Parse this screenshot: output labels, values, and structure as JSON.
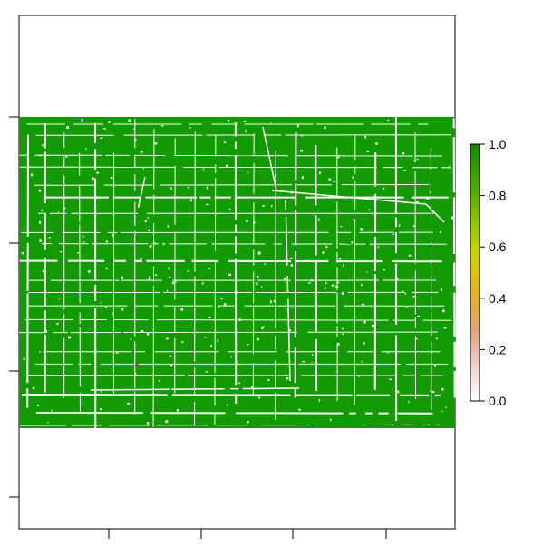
{
  "map": {
    "type": "raster",
    "color_scale": {
      "palette": "terrain-reversed",
      "colors": [
        "#ffffff",
        "#f2cccc",
        "#e0a080",
        "#e0b020",
        "#c8d800",
        "#70b800",
        "#118a00"
      ],
      "min": 0.0,
      "max": 1.0,
      "tick_labels": [
        "0.0",
        "0.2",
        "0.4",
        "0.6",
        "0.8",
        "1.0"
      ]
    },
    "fill_color": "#139a00",
    "background": "#ffffff",
    "value_range": [
      0,
      1
    ],
    "note_shape": "roads/field-boundaries appear as white lines on dense green cover"
  }
}
